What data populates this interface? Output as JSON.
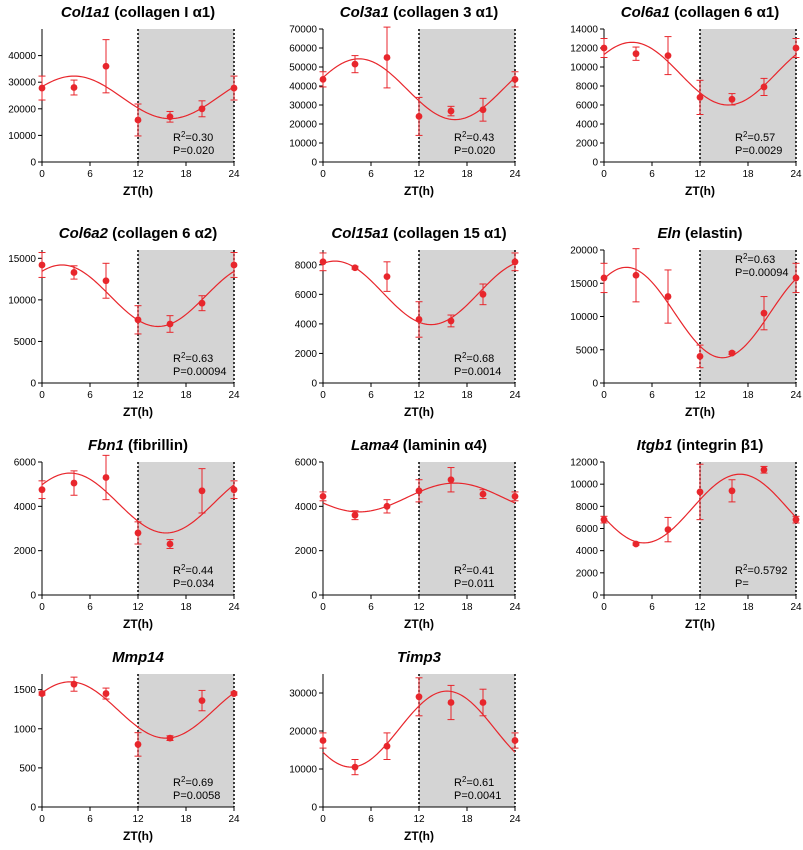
{
  "figure": {
    "x_ticks": [
      "0",
      "6",
      "12",
      "18",
      "24"
    ],
    "xlabel": "ZT(h)"
  },
  "chart_data": [
    {
      "type": "scatter",
      "title_gene": "Col1a1",
      "title_rest": " (collagen I α1)",
      "xlabel": "ZT(h)",
      "xlim": [
        0,
        24
      ],
      "ylim": [
        0,
        50000
      ],
      "y_ticks": [
        "0",
        "10000",
        "20000",
        "30000",
        "40000"
      ],
      "y_tick_values": [
        0,
        10000,
        20000,
        30000,
        40000
      ],
      "shaded_region": [
        12,
        24
      ],
      "points": [
        {
          "x": 0,
          "y": 27800,
          "err": 4500
        },
        {
          "x": 4,
          "y": 28000,
          "err": 2800
        },
        {
          "x": 8,
          "y": 36000,
          "err": 10000
        },
        {
          "x": 12,
          "y": 15800,
          "err": 6000
        },
        {
          "x": 16,
          "y": 17000,
          "err": 2000
        },
        {
          "x": 20,
          "y": 20000,
          "err": 3000
        },
        {
          "x": 24,
          "y": 27800,
          "err": 4500
        }
      ],
      "fit": {
        "mesor": 24300,
        "amplitude": 8000,
        "peak": 4
      },
      "r2_label": "R",
      "r2_value": "=0.30",
      "p_label": "P=0.020"
    },
    {
      "type": "scatter",
      "title_gene": "Col3a1",
      "title_rest": " (collagen 3 α1)",
      "xlabel": "ZT(h)",
      "xlim": [
        0,
        24
      ],
      "ylim": [
        0,
        70000
      ],
      "y_ticks": [
        "0",
        "10000",
        "20000",
        "30000",
        "40000",
        "50000",
        "60000",
        "70000"
      ],
      "y_tick_values": [
        0,
        10000,
        20000,
        30000,
        40000,
        50000,
        60000,
        70000
      ],
      "shaded_region": [
        12,
        24
      ],
      "points": [
        {
          "x": 0,
          "y": 43500,
          "err": 4000
        },
        {
          "x": 4,
          "y": 51500,
          "err": 4500
        },
        {
          "x": 8,
          "y": 55000,
          "err": 16000
        },
        {
          "x": 12,
          "y": 24000,
          "err": 10000
        },
        {
          "x": 16,
          "y": 26800,
          "err": 2500
        },
        {
          "x": 20,
          "y": 27500,
          "err": 6000
        },
        {
          "x": 24,
          "y": 43500,
          "err": 4000
        }
      ],
      "fit": {
        "mesor": 38300,
        "amplitude": 16000,
        "peak": 4.5
      },
      "r2_label": "R",
      "r2_value": "=0.43",
      "p_label": "P=0.020"
    },
    {
      "type": "scatter",
      "title_gene": "Col6a1",
      "title_rest": " (collagen 6 α1)",
      "xlabel": "ZT(h)",
      "xlim": [
        0,
        24
      ],
      "ylim": [
        0,
        14000
      ],
      "y_ticks": [
        "0",
        "2000",
        "4000",
        "6000",
        "8000",
        "10000",
        "12000",
        "14000"
      ],
      "y_tick_values": [
        0,
        2000,
        4000,
        6000,
        8000,
        10000,
        12000,
        14000
      ],
      "shaded_region": [
        12,
        24
      ],
      "points": [
        {
          "x": 0,
          "y": 12000,
          "err": 1000
        },
        {
          "x": 4,
          "y": 11400,
          "err": 700
        },
        {
          "x": 8,
          "y": 11200,
          "err": 2000
        },
        {
          "x": 12,
          "y": 6800,
          "err": 1800
        },
        {
          "x": 16,
          "y": 6600,
          "err": 600
        },
        {
          "x": 20,
          "y": 7900,
          "err": 900
        },
        {
          "x": 24,
          "y": 12000,
          "err": 1000
        }
      ],
      "fit": {
        "mesor": 9300,
        "amplitude": 3300,
        "peak": 3.5
      },
      "r2_label": "R",
      "r2_value": "=0.57",
      "p_label": "P=0.0029"
    },
    {
      "type": "scatter",
      "title_gene": "Col6a2",
      "title_rest": " (collagen 6 α2)",
      "xlabel": "ZT(h)",
      "xlim": [
        0,
        24
      ],
      "ylim": [
        0,
        16000
      ],
      "y_ticks": [
        "0",
        "5000",
        "10000",
        "15000"
      ],
      "y_tick_values": [
        0,
        5000,
        10000,
        15000
      ],
      "shaded_region": [
        12,
        24
      ],
      "points": [
        {
          "x": 0,
          "y": 14200,
          "err": 1500
        },
        {
          "x": 4,
          "y": 13300,
          "err": 800
        },
        {
          "x": 8,
          "y": 12300,
          "err": 2100
        },
        {
          "x": 12,
          "y": 7600,
          "err": 1700
        },
        {
          "x": 16,
          "y": 7100,
          "err": 1000
        },
        {
          "x": 20,
          "y": 9600,
          "err": 900
        },
        {
          "x": 24,
          "y": 14200,
          "err": 1500
        }
      ],
      "fit": {
        "mesor": 10500,
        "amplitude": 3700,
        "peak": 2.5
      },
      "r2_label": "R",
      "r2_value": "=0.63",
      "p_label": "P=0.00094"
    },
    {
      "type": "scatter",
      "title_gene": "Col15a1",
      "title_rest": " (collagen 15 α1)",
      "xlabel": "ZT(h)",
      "xlim": [
        0,
        24
      ],
      "ylim": [
        0,
        9000
      ],
      "y_ticks": [
        "0",
        "2000",
        "4000",
        "6000",
        "8000"
      ],
      "y_tick_values": [
        0,
        2000,
        4000,
        6000,
        8000
      ],
      "shaded_region": [
        12,
        24
      ],
      "points": [
        {
          "x": 0,
          "y": 8200,
          "err": 600
        },
        {
          "x": 4,
          "y": 7800,
          "err": 100
        },
        {
          "x": 8,
          "y": 7200,
          "err": 1000
        },
        {
          "x": 12,
          "y": 4300,
          "err": 1200
        },
        {
          "x": 16,
          "y": 4200,
          "err": 400
        },
        {
          "x": 20,
          "y": 6000,
          "err": 700
        },
        {
          "x": 24,
          "y": 8200,
          "err": 600
        }
      ],
      "fit": {
        "mesor": 6100,
        "amplitude": 2150,
        "peak": 1.5
      },
      "r2_label": "R",
      "r2_value": "=0.68",
      "p_label": "P=0.0014"
    },
    {
      "type": "scatter",
      "title_gene": "Eln",
      "title_rest": " (elastin)",
      "xlabel": "ZT(h)",
      "xlim": [
        0,
        24
      ],
      "ylim": [
        0,
        20000
      ],
      "y_ticks": [
        "0",
        "5000",
        "10000",
        "15000",
        "20000"
      ],
      "y_tick_values": [
        0,
        5000,
        10000,
        15000,
        20000
      ],
      "shaded_region": [
        12,
        24
      ],
      "points": [
        {
          "x": 0,
          "y": 15800,
          "err": 2200
        },
        {
          "x": 4,
          "y": 16200,
          "err": 4000
        },
        {
          "x": 8,
          "y": 13000,
          "err": 4000
        },
        {
          "x": 12,
          "y": 4000,
          "err": 1700
        },
        {
          "x": 16,
          "y": 4500,
          "err": 200
        },
        {
          "x": 20,
          "y": 10500,
          "err": 2500
        },
        {
          "x": 24,
          "y": 15800,
          "err": 2200
        }
      ],
      "fit": {
        "mesor": 10600,
        "amplitude": 6800,
        "peak": 2.8
      },
      "r2_label": "R",
      "r2_value": "=0.63",
      "p_label": "P=0.00094"
    },
    {
      "type": "scatter",
      "title_gene": "Fbn1",
      "title_rest": " (fibrillin)",
      "xlabel": "ZT(h)",
      "xlim": [
        0,
        24
      ],
      "ylim": [
        0,
        6000
      ],
      "y_ticks": [
        "0",
        "2000",
        "4000",
        "6000"
      ],
      "y_tick_values": [
        0,
        2000,
        4000,
        6000
      ],
      "shaded_region": [
        12,
        24
      ],
      "points": [
        {
          "x": 0,
          "y": 4750,
          "err": 400
        },
        {
          "x": 4,
          "y": 5050,
          "err": 550
        },
        {
          "x": 8,
          "y": 5300,
          "err": 1000
        },
        {
          "x": 12,
          "y": 2800,
          "err": 500
        },
        {
          "x": 16,
          "y": 2300,
          "err": 200
        },
        {
          "x": 20,
          "y": 4700,
          "err": 1000
        },
        {
          "x": 24,
          "y": 4750,
          "err": 400
        }
      ],
      "fit": {
        "mesor": 4150,
        "amplitude": 1350,
        "peak": 3.5
      },
      "r2_label": "R",
      "r2_value": "=0.44",
      "p_label": "P=0.034"
    },
    {
      "type": "scatter",
      "title_gene": "Lama4",
      "title_rest": " (laminin α4)",
      "xlabel": "ZT(h)",
      "xlim": [
        0,
        24
      ],
      "ylim": [
        0,
        6000
      ],
      "y_ticks": [
        "0",
        "2000",
        "4000",
        "6000"
      ],
      "y_tick_values": [
        0,
        2000,
        4000,
        6000
      ],
      "shaded_region": [
        12,
        24
      ],
      "points": [
        {
          "x": 0,
          "y": 4450,
          "err": 200
        },
        {
          "x": 4,
          "y": 3600,
          "err": 200
        },
        {
          "x": 8,
          "y": 4000,
          "err": 300
        },
        {
          "x": 12,
          "y": 4700,
          "err": 500
        },
        {
          "x": 16,
          "y": 5200,
          "err": 550
        },
        {
          "x": 20,
          "y": 4550,
          "err": 200
        },
        {
          "x": 24,
          "y": 4450,
          "err": 200
        }
      ],
      "fit": {
        "mesor": 4400,
        "amplitude": 650,
        "peak": 16.5
      },
      "r2_label": "R",
      "r2_value": "=0.41",
      "p_label": "P=0.011"
    },
    {
      "type": "scatter",
      "title_gene": "Itgb1",
      "title_rest": " (integrin β1)",
      "xlabel": "ZT(h)",
      "xlim": [
        0,
        24
      ],
      "ylim": [
        0,
        12000
      ],
      "y_ticks": [
        "0",
        "2000",
        "4000",
        "6000",
        "8000",
        "10000",
        "12000"
      ],
      "y_tick_values": [
        0,
        2000,
        4000,
        6000,
        8000,
        10000,
        12000
      ],
      "shaded_region": [
        12,
        24
      ],
      "points": [
        {
          "x": 0,
          "y": 6800,
          "err": 300
        },
        {
          "x": 4,
          "y": 4600,
          "err": 100
        },
        {
          "x": 8,
          "y": 5900,
          "err": 1100
        },
        {
          "x": 12,
          "y": 9300,
          "err": 2500
        },
        {
          "x": 16,
          "y": 9400,
          "err": 1000
        },
        {
          "x": 20,
          "y": 11300,
          "err": 300
        },
        {
          "x": 24,
          "y": 6800,
          "err": 300
        }
      ],
      "fit": {
        "mesor": 7800,
        "amplitude": 3100,
        "peak": 17
      },
      "r2_label": "R",
      "r2_value": "=0.5792",
      "p_label": "P="
    },
    {
      "type": "scatter",
      "title_gene": "Mmp14",
      "title_rest": "",
      "xlabel": "ZT(h)",
      "xlim": [
        0,
        24
      ],
      "ylim": [
        0,
        1700
      ],
      "y_ticks": [
        "0",
        "500",
        "1000",
        "1500"
      ],
      "y_tick_values": [
        0,
        500,
        1000,
        1500
      ],
      "shaded_region": [
        12,
        24
      ],
      "points": [
        {
          "x": 0,
          "y": 1450,
          "err": 20
        },
        {
          "x": 4,
          "y": 1570,
          "err": 90
        },
        {
          "x": 8,
          "y": 1450,
          "err": 70
        },
        {
          "x": 12,
          "y": 800,
          "err": 150
        },
        {
          "x": 16,
          "y": 880,
          "err": 30
        },
        {
          "x": 20,
          "y": 1360,
          "err": 130
        },
        {
          "x": 24,
          "y": 1450,
          "err": 20
        }
      ],
      "fit": {
        "mesor": 1240,
        "amplitude": 360,
        "peak": 3.5
      },
      "r2_label": "R",
      "r2_value": "=0.69",
      "p_label": "P=0.0058"
    },
    {
      "type": "scatter",
      "title_gene": "Timp3",
      "title_rest": "",
      "xlabel": "ZT(h)",
      "xlim": [
        0,
        24
      ],
      "ylim": [
        0,
        35000
      ],
      "y_ticks": [
        "0",
        "10000",
        "20000",
        "30000"
      ],
      "y_tick_values": [
        0,
        10000,
        20000,
        30000
      ],
      "shaded_region": [
        12,
        24
      ],
      "points": [
        {
          "x": 0,
          "y": 17500,
          "err": 2000
        },
        {
          "x": 4,
          "y": 10500,
          "err": 2000
        },
        {
          "x": 8,
          "y": 16000,
          "err": 3500
        },
        {
          "x": 12,
          "y": 29000,
          "err": 5000
        },
        {
          "x": 16,
          "y": 27500,
          "err": 4500
        },
        {
          "x": 20,
          "y": 27500,
          "err": 3500
        },
        {
          "x": 24,
          "y": 17500,
          "err": 2000
        }
      ],
      "fit": {
        "mesor": 20500,
        "amplitude": 10000,
        "peak": 15.5
      },
      "r2_label": "R",
      "r2_value": "=0.61",
      "p_label": "P=0.0041"
    }
  ],
  "colors": {
    "data": "#e8262c",
    "shade": "#d4d4d4",
    "axis": "#000000"
  }
}
